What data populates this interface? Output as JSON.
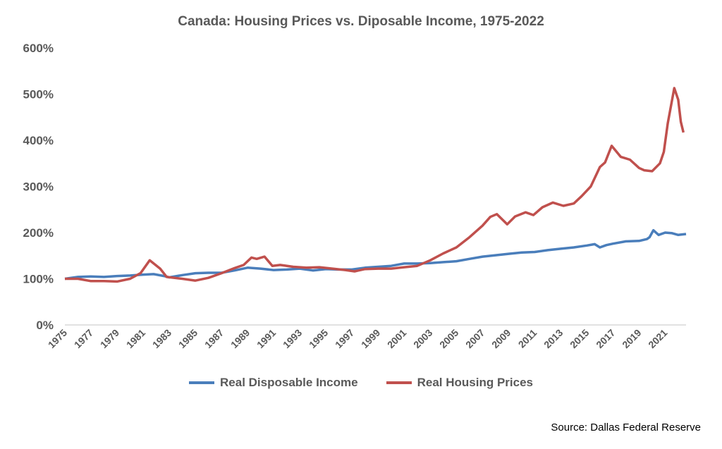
{
  "chart_data": {
    "type": "line",
    "title": "Canada: Housing Prices vs. Diposable Income, 1975-2022",
    "xlabel": "",
    "ylabel": "",
    "ylim": [
      0,
      600
    ],
    "xlim": [
      1975,
      2022.6
    ],
    "grid": false,
    "legend_position": "bottom",
    "y_ticks": [
      "0%",
      "100%",
      "200%",
      "300%",
      "400%",
      "500%",
      "600%"
    ],
    "x_ticks": [
      "1975",
      "1977",
      "1979",
      "1981",
      "1983",
      "1985",
      "1987",
      "1989",
      "1991",
      "1993",
      "1995",
      "1997",
      "1999",
      "2001",
      "2003",
      "2005",
      "2007",
      "2009",
      "2011",
      "2013",
      "2015",
      "2017",
      "2019",
      "2021"
    ],
    "series": [
      {
        "name": "Real Disposable Income",
        "color": "#4a7ebb",
        "x": [
          1975,
          1976,
          1977,
          1978,
          1979,
          1980,
          1981,
          1981.8,
          1982.6,
          1983,
          1984,
          1985,
          1986,
          1987,
          1988,
          1989,
          1990,
          1991,
          1992,
          1993,
          1994,
          1995,
          1996,
          1997,
          1998,
          1999,
          2000,
          2001,
          2002,
          2003,
          2004,
          2005,
          2006,
          2007,
          2008,
          2009,
          2010,
          2011,
          2012,
          2013,
          2014,
          2015,
          2015.6,
          2016,
          2016.5,
          2017,
          2018,
          2019,
          2019.6,
          2019.8,
          2020.1,
          2020.5,
          2021,
          2021.5,
          2022,
          2022.6
        ],
        "y": [
          100,
          104,
          105,
          104,
          106,
          107,
          109,
          110,
          106,
          103,
          108,
          112,
          113,
          113,
          118,
          124,
          122,
          119,
          120,
          122,
          118,
          121,
          120,
          120,
          124,
          126,
          128,
          133,
          133,
          134,
          136,
          138,
          143,
          148,
          151,
          154,
          157,
          158,
          162,
          165,
          168,
          172,
          175,
          168,
          173,
          176,
          181,
          182,
          186,
          190,
          205,
          195,
          200,
          199,
          195,
          197
        ]
      },
      {
        "name": "Real Housing Prices",
        "color": "#c0504d",
        "x": [
          1975,
          1976,
          1977,
          1978,
          1979,
          1980,
          1980.8,
          1981.5,
          1982.3,
          1982.8,
          1984,
          1985,
          1986,
          1987,
          1988,
          1988.7,
          1989.3,
          1989.7,
          1990.3,
          1990.9,
          1991.5,
          1992.5,
          1993.5,
          1994.5,
          1995.5,
          1996.5,
          1997.2,
          1998,
          1999,
          2000,
          2001,
          2002,
          2003,
          2004,
          2005,
          2006,
          2007,
          2007.6,
          2008.1,
          2008.9,
          2009.5,
          2010.3,
          2010.9,
          2011.6,
          2012.4,
          2013.2,
          2014,
          2014.6,
          2015.3,
          2016,
          2016.4,
          2016.9,
          2017.6,
          2018.3,
          2019,
          2019.4,
          2020,
          2020.6,
          2020.9,
          2021.2,
          2021.7,
          2022,
          2022.2,
          2022.4
        ],
        "y": [
          100,
          100,
          95,
          95,
          94,
          100,
          112,
          140,
          122,
          104,
          100,
          96,
          102,
          112,
          123,
          130,
          146,
          143,
          148,
          128,
          130,
          126,
          124,
          125,
          122,
          119,
          116,
          121,
          122,
          122,
          125,
          128,
          140,
          155,
          168,
          190,
          215,
          234,
          240,
          218,
          235,
          244,
          238,
          255,
          265,
          258,
          263,
          279,
          300,
          342,
          352,
          388,
          364,
          358,
          340,
          335,
          333,
          350,
          375,
          437,
          513,
          488,
          440,
          417
        ]
      }
    ]
  },
  "source": "Source: Dallas Federal Reserve"
}
